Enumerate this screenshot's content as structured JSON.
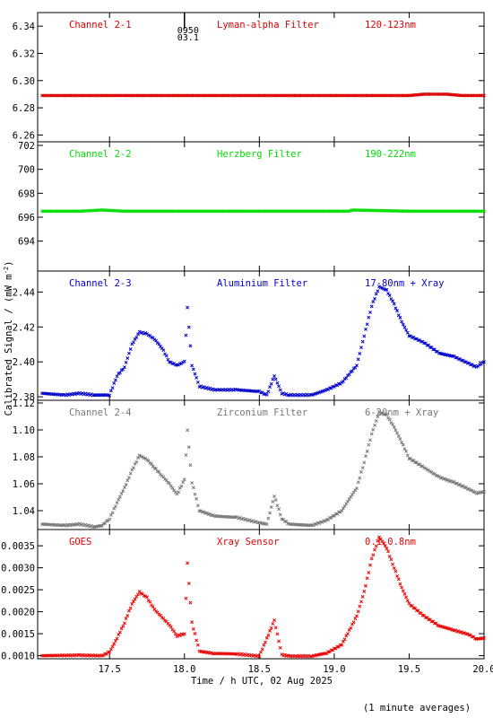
{
  "chart_data": [
    {
      "type": "scatter",
      "channel_label": "Channel 2-1",
      "filter_label": "Lyman-alpha Filter",
      "band_label": "120-123nm",
      "color": "#dd0000",
      "ylim": [
        6.255,
        6.35
      ],
      "yticks": [
        "6.26",
        "6.28",
        "6.30",
        "6.32",
        "6.34"
      ],
      "yvalues": [
        6.26,
        6.28,
        6.3,
        6.32,
        6.34
      ],
      "marker": {
        "x": 18.0,
        "label_top": "0950",
        "label_bottom": "03.1"
      },
      "points": [
        [
          17.05,
          6.289
        ],
        [
          17.5,
          6.289
        ],
        [
          18.0,
          6.289
        ],
        [
          18.5,
          6.289
        ],
        [
          19.0,
          6.289
        ],
        [
          19.5,
          6.289
        ],
        [
          19.6,
          6.29
        ],
        [
          19.75,
          6.29
        ],
        [
          19.85,
          6.289
        ],
        [
          20.0,
          6.289
        ]
      ]
    },
    {
      "type": "scatter",
      "channel_label": "Channel 2-2",
      "filter_label": "Herzberg Filter",
      "band_label": "190-222nm",
      "color": "#00dd00",
      "ylim": [
        691.5,
        702.3
      ],
      "yticks": [
        "694",
        "696",
        "698",
        "700",
        "702"
      ],
      "yvalues": [
        694,
        696,
        698,
        700,
        702
      ],
      "points": [
        [
          17.05,
          696.5
        ],
        [
          17.3,
          696.5
        ],
        [
          17.45,
          696.6
        ],
        [
          17.6,
          696.5
        ],
        [
          18.0,
          696.5
        ],
        [
          18.5,
          696.5
        ],
        [
          19.1,
          696.5
        ],
        [
          19.12,
          696.6
        ],
        [
          19.5,
          696.5
        ],
        [
          20.0,
          696.5
        ]
      ]
    },
    {
      "type": "scatter",
      "channel_label": "Channel 2-3",
      "filter_label": "Aluminium Filter",
      "band_label": "17-80nm + Xray",
      "color": "#0000cc",
      "ylim": [
        2.378,
        2.452
      ],
      "yticks": [
        "2.38",
        "2.40",
        "2.42",
        "2.44"
      ],
      "yvalues": [
        2.38,
        2.4,
        2.42,
        2.44
      ],
      "points": [
        [
          17.05,
          2.382
        ],
        [
          17.2,
          2.381
        ],
        [
          17.3,
          2.382
        ],
        [
          17.4,
          2.381
        ],
        [
          17.5,
          2.381
        ],
        [
          17.55,
          2.392
        ],
        [
          17.6,
          2.397
        ],
        [
          17.65,
          2.41
        ],
        [
          17.7,
          2.417
        ],
        [
          17.75,
          2.416
        ],
        [
          17.8,
          2.413
        ],
        [
          17.85,
          2.408
        ],
        [
          17.9,
          2.4
        ],
        [
          17.95,
          2.398
        ],
        [
          18.0,
          2.4
        ],
        [
          18.02,
          2.431
        ],
        [
          18.05,
          2.398
        ],
        [
          18.1,
          2.386
        ],
        [
          18.2,
          2.384
        ],
        [
          18.35,
          2.384
        ],
        [
          18.5,
          2.383
        ],
        [
          18.55,
          2.381
        ],
        [
          18.6,
          2.392
        ],
        [
          18.65,
          2.382
        ],
        [
          18.7,
          2.381
        ],
        [
          18.85,
          2.381
        ],
        [
          18.95,
          2.384
        ],
        [
          19.05,
          2.388
        ],
        [
          19.15,
          2.398
        ],
        [
          19.2,
          2.415
        ],
        [
          19.25,
          2.432
        ],
        [
          19.3,
          2.443
        ],
        [
          19.35,
          2.441
        ],
        [
          19.4,
          2.433
        ],
        [
          19.45,
          2.423
        ],
        [
          19.5,
          2.415
        ],
        [
          19.6,
          2.411
        ],
        [
          19.7,
          2.405
        ],
        [
          19.8,
          2.403
        ],
        [
          19.9,
          2.399
        ],
        [
          19.95,
          2.397
        ],
        [
          20.0,
          2.4
        ]
      ]
    },
    {
      "type": "scatter",
      "channel_label": "Channel 2-4",
      "filter_label": "Zirconium Filter",
      "band_label": "6-20nm + Xray",
      "color": "#777777",
      "ylim": [
        1.026,
        1.122
      ],
      "yticks": [
        "1.04",
        "1.06",
        "1.08",
        "1.10",
        "1.12"
      ],
      "yvalues": [
        1.04,
        1.06,
        1.08,
        1.1,
        1.12
      ],
      "points": [
        [
          17.05,
          1.03
        ],
        [
          17.2,
          1.029
        ],
        [
          17.3,
          1.03
        ],
        [
          17.4,
          1.028
        ],
        [
          17.45,
          1.029
        ],
        [
          17.5,
          1.034
        ],
        [
          17.55,
          1.046
        ],
        [
          17.6,
          1.057
        ],
        [
          17.65,
          1.07
        ],
        [
          17.7,
          1.081
        ],
        [
          17.75,
          1.078
        ],
        [
          17.8,
          1.072
        ],
        [
          17.85,
          1.066
        ],
        [
          17.9,
          1.06
        ],
        [
          17.95,
          1.052
        ],
        [
          18.0,
          1.063
        ],
        [
          18.02,
          1.1
        ],
        [
          18.05,
          1.061
        ],
        [
          18.1,
          1.04
        ],
        [
          18.2,
          1.036
        ],
        [
          18.35,
          1.035
        ],
        [
          18.5,
          1.031
        ],
        [
          18.55,
          1.03
        ],
        [
          18.6,
          1.051
        ],
        [
          18.65,
          1.034
        ],
        [
          18.7,
          1.03
        ],
        [
          18.85,
          1.029
        ],
        [
          18.95,
          1.033
        ],
        [
          19.05,
          1.04
        ],
        [
          19.15,
          1.057
        ],
        [
          19.2,
          1.076
        ],
        [
          19.25,
          1.097
        ],
        [
          19.3,
          1.113
        ],
        [
          19.35,
          1.111
        ],
        [
          19.4,
          1.102
        ],
        [
          19.45,
          1.091
        ],
        [
          19.5,
          1.079
        ],
        [
          19.6,
          1.072
        ],
        [
          19.7,
          1.065
        ],
        [
          19.8,
          1.061
        ],
        [
          19.9,
          1.056
        ],
        [
          19.95,
          1.053
        ],
        [
          20.0,
          1.054
        ]
      ]
    },
    {
      "type": "scatter",
      "channel_label": "GOES",
      "filter_label": "Xray Sensor",
      "band_label": "0.1-0.8nm",
      "color": "#ee0000",
      "ylim": [
        0.00093,
        0.00387
      ],
      "yticks": [
        "0.0010",
        "0.0015",
        "0.0020",
        "0.0025",
        "0.0030",
        "0.0035"
      ],
      "yvalues": [
        0.001,
        0.0015,
        0.002,
        0.0025,
        0.003,
        0.0035
      ],
      "points": [
        [
          17.05,
          0.001
        ],
        [
          17.3,
          0.00101
        ],
        [
          17.45,
          0.001
        ],
        [
          17.5,
          0.00108
        ],
        [
          17.55,
          0.0014
        ],
        [
          17.6,
          0.00175
        ],
        [
          17.65,
          0.00218
        ],
        [
          17.7,
          0.00245
        ],
        [
          17.75,
          0.00232
        ],
        [
          17.8,
          0.00205
        ],
        [
          17.9,
          0.0017
        ],
        [
          17.95,
          0.00145
        ],
        [
          18.0,
          0.0015
        ],
        [
          18.02,
          0.0031
        ],
        [
          18.05,
          0.00175
        ],
        [
          18.1,
          0.0011
        ],
        [
          18.2,
          0.00105
        ],
        [
          18.35,
          0.00104
        ],
        [
          18.5,
          0.00099
        ],
        [
          18.6,
          0.0018
        ],
        [
          18.65,
          0.00102
        ],
        [
          18.7,
          0.00099
        ],
        [
          18.85,
          0.00099
        ],
        [
          18.95,
          0.00106
        ],
        [
          19.05,
          0.00125
        ],
        [
          19.15,
          0.0019
        ],
        [
          19.2,
          0.00245
        ],
        [
          19.25,
          0.0032
        ],
        [
          19.3,
          0.0037
        ],
        [
          19.35,
          0.00345
        ],
        [
          19.4,
          0.003
        ],
        [
          19.45,
          0.00255
        ],
        [
          19.5,
          0.00218
        ],
        [
          19.6,
          0.0019
        ],
        [
          19.7,
          0.00168
        ],
        [
          19.8,
          0.00158
        ],
        [
          19.9,
          0.00148
        ],
        [
          19.95,
          0.00138
        ],
        [
          20.0,
          0.0014
        ]
      ]
    }
  ],
  "xaxis": {
    "xlim": [
      17.02,
      20.0
    ],
    "ticks": [
      "17.5",
      "18.0",
      "18.5",
      "19.0",
      "19.5",
      "20.0"
    ],
    "values": [
      17.5,
      18.0,
      18.5,
      19.0,
      19.5,
      20.0
    ],
    "label": "Time / h UTC, 02 Aug 2025"
  },
  "ylabel_text": "Calibrated Signal / (mW m",
  "ylabel_sup": "-2",
  "ylabel_close": ")",
  "footnote": "(1 minute averages)"
}
